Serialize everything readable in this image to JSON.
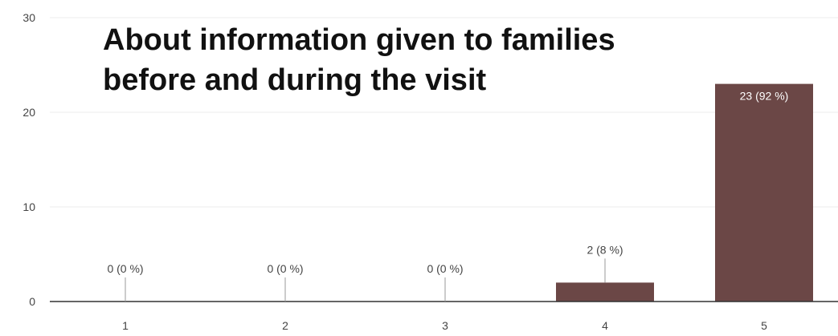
{
  "chart_data": {
    "type": "bar",
    "title": "About information given to families before and during the visit",
    "title_lines": [
      "About information given to families",
      "before and during the visit"
    ],
    "categories": [
      "1",
      "2",
      "3",
      "4",
      "5"
    ],
    "values": [
      0,
      0,
      0,
      2,
      23
    ],
    "data_labels": [
      "0 (0 %)",
      "0 (0 %)",
      "0 (0 %)",
      "2 (8 %)",
      "23 (92 %)"
    ],
    "y_ticks": [
      0,
      10,
      20,
      30
    ],
    "ylim": [
      0,
      30
    ],
    "xlabel": "",
    "ylabel": "",
    "grid": true,
    "bar_color": "#6b4746",
    "grid_color": "#eeeeee",
    "axis_color": "#333333"
  }
}
